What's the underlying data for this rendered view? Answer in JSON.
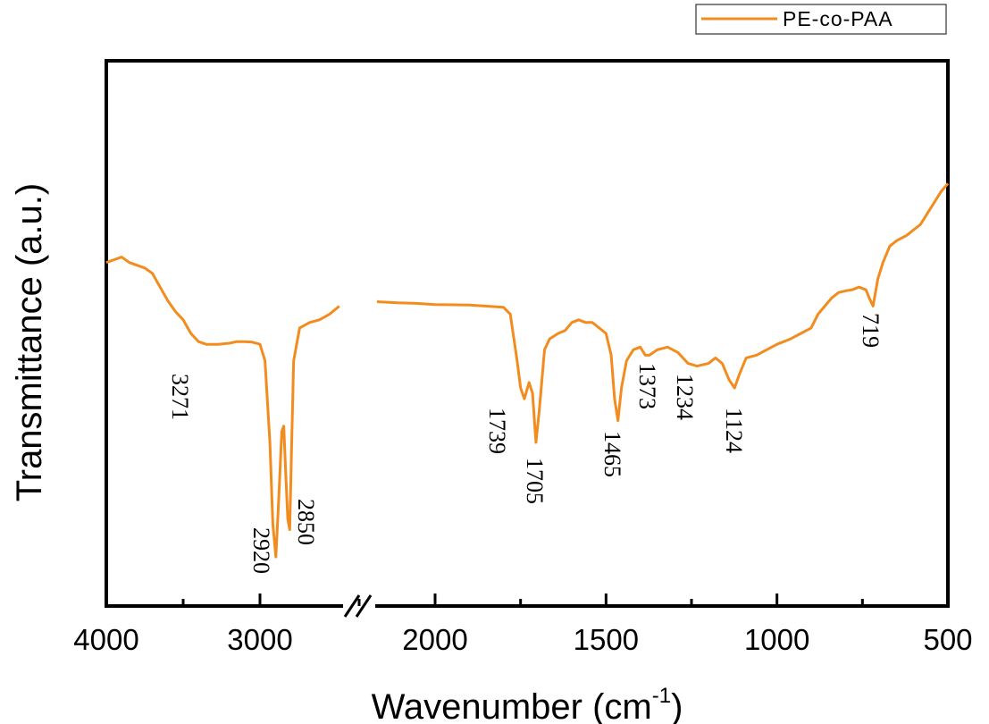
{
  "chart_data": {
    "type": "line",
    "xlabel": "Wavenumber (cm",
    "xlabel_superscript": "-1",
    "xlabel_suffix": ")",
    "ylabel": "Transmittance (a.u.)",
    "x_axis_reversed": true,
    "x_axis_break": [
      2500,
      2400
    ],
    "x_segments": [
      [
        4000,
        2500
      ],
      [
        2400,
        500
      ]
    ],
    "xticks": [
      4000,
      3000,
      2000,
      1500,
      1000,
      500
    ],
    "minor_xticks": [
      3500,
      2500,
      1750,
      1250,
      750
    ],
    "legend_position": "top-right",
    "grid": false,
    "series": [
      {
        "name": "PE-co-PAA",
        "color": "#F28C1E",
        "points": [
          [
            4000,
            0.63
          ],
          [
            3950,
            0.635
          ],
          [
            3900,
            0.64
          ],
          [
            3850,
            0.63
          ],
          [
            3800,
            0.625
          ],
          [
            3750,
            0.62
          ],
          [
            3700,
            0.61
          ],
          [
            3650,
            0.585
          ],
          [
            3600,
            0.56
          ],
          [
            3550,
            0.54
          ],
          [
            3500,
            0.525
          ],
          [
            3450,
            0.5
          ],
          [
            3400,
            0.485
          ],
          [
            3350,
            0.48
          ],
          [
            3300,
            0.48
          ],
          [
            3271,
            0.48
          ],
          [
            3200,
            0.482
          ],
          [
            3150,
            0.485
          ],
          [
            3100,
            0.485
          ],
          [
            3050,
            0.484
          ],
          [
            3000,
            0.48
          ],
          [
            2975,
            0.45
          ],
          [
            2950,
            0.3
          ],
          [
            2935,
            0.15
          ],
          [
            2920,
            0.09
          ],
          [
            2905,
            0.2
          ],
          [
            2890,
            0.32
          ],
          [
            2880,
            0.33
          ],
          [
            2870,
            0.24
          ],
          [
            2860,
            0.16
          ],
          [
            2850,
            0.14
          ],
          [
            2840,
            0.3
          ],
          [
            2830,
            0.45
          ],
          [
            2800,
            0.51
          ],
          [
            2750,
            0.52
          ],
          [
            2700,
            0.525
          ],
          [
            2650,
            0.535
          ],
          [
            2600,
            0.55
          ],
          null,
          [
            2400,
            0.56
          ],
          [
            2300,
            0.558
          ],
          [
            2200,
            0.556
          ],
          [
            2100,
            0.555
          ],
          [
            2000,
            0.553
          ],
          [
            1900,
            0.552
          ],
          [
            1850,
            0.55
          ],
          [
            1800,
            0.548
          ],
          [
            1780,
            0.535
          ],
          [
            1760,
            0.45
          ],
          [
            1750,
            0.4
          ],
          [
            1739,
            0.38
          ],
          [
            1725,
            0.41
          ],
          [
            1715,
            0.39
          ],
          [
            1705,
            0.3
          ],
          [
            1695,
            0.36
          ],
          [
            1680,
            0.47
          ],
          [
            1665,
            0.49
          ],
          [
            1640,
            0.5
          ],
          [
            1620,
            0.505
          ],
          [
            1600,
            0.52
          ],
          [
            1580,
            0.525
          ],
          [
            1560,
            0.52
          ],
          [
            1540,
            0.52
          ],
          [
            1520,
            0.51
          ],
          [
            1500,
            0.5
          ],
          [
            1485,
            0.46
          ],
          [
            1475,
            0.38
          ],
          [
            1465,
            0.34
          ],
          [
            1455,
            0.4
          ],
          [
            1440,
            0.45
          ],
          [
            1420,
            0.47
          ],
          [
            1400,
            0.475
          ],
          [
            1385,
            0.46
          ],
          [
            1373,
            0.46
          ],
          [
            1350,
            0.47
          ],
          [
            1320,
            0.475
          ],
          [
            1290,
            0.465
          ],
          [
            1260,
            0.445
          ],
          [
            1234,
            0.44
          ],
          [
            1200,
            0.445
          ],
          [
            1180,
            0.455
          ],
          [
            1160,
            0.445
          ],
          [
            1140,
            0.415
          ],
          [
            1124,
            0.4
          ],
          [
            1110,
            0.425
          ],
          [
            1090,
            0.455
          ],
          [
            1060,
            0.46
          ],
          [
            1030,
            0.47
          ],
          [
            1000,
            0.48
          ],
          [
            960,
            0.49
          ],
          [
            930,
            0.5
          ],
          [
            900,
            0.51
          ],
          [
            880,
            0.535
          ],
          [
            860,
            0.55
          ],
          [
            840,
            0.565
          ],
          [
            820,
            0.575
          ],
          [
            800,
            0.578
          ],
          [
            780,
            0.58
          ],
          [
            760,
            0.585
          ],
          [
            740,
            0.58
          ],
          [
            730,
            0.565
          ],
          [
            719,
            0.55
          ],
          [
            705,
            0.6
          ],
          [
            690,
            0.63
          ],
          [
            670,
            0.66
          ],
          [
            650,
            0.67
          ],
          [
            620,
            0.68
          ],
          [
            600,
            0.69
          ],
          [
            580,
            0.7
          ],
          [
            560,
            0.72
          ],
          [
            540,
            0.74
          ],
          [
            520,
            0.76
          ],
          [
            500,
            0.775
          ]
        ]
      }
    ],
    "annotations": [
      {
        "text": "3271",
        "x": 3271
      },
      {
        "text": "2920",
        "x": 2920
      },
      {
        "text": "2850",
        "x": 2850
      },
      {
        "text": "1739",
        "x": 1739
      },
      {
        "text": "1705",
        "x": 1705
      },
      {
        "text": "1465",
        "x": 1465
      },
      {
        "text": "1373",
        "x": 1373
      },
      {
        "text": "1234",
        "x": 1234
      },
      {
        "text": "1124",
        "x": 1124
      },
      {
        "text": "719",
        "x": 719
      }
    ]
  }
}
